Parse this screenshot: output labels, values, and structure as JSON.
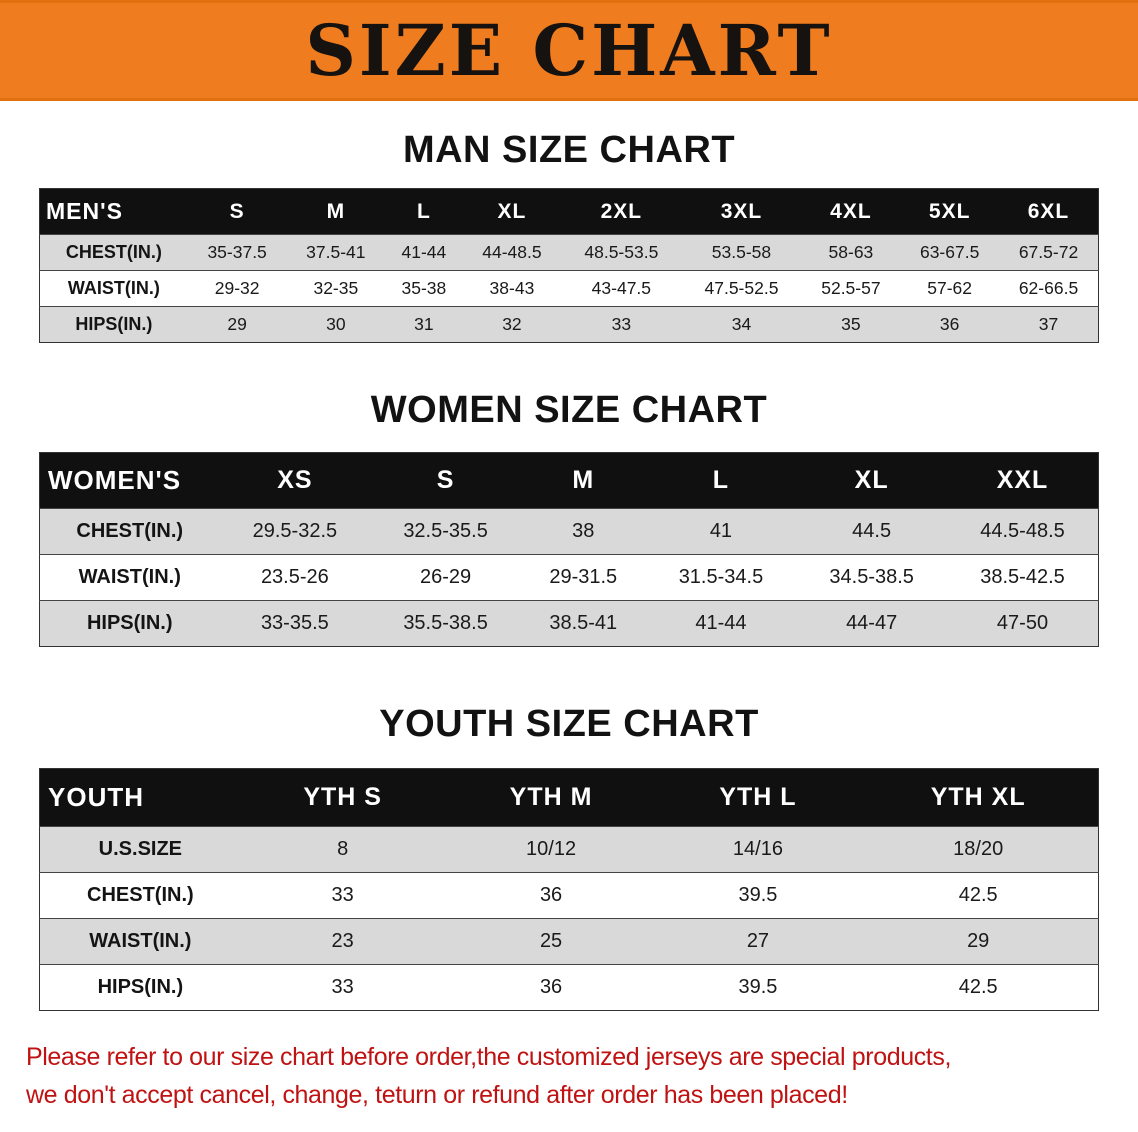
{
  "banner": {
    "title": "SIZE CHART",
    "bg_color": "#EF7D1F",
    "text_color": "#161210"
  },
  "sections": [
    {
      "id": "men",
      "heading": "MAN SIZE CHART",
      "table": {
        "header": [
          "MEN'S",
          "S",
          "M",
          "L",
          "XL",
          "2XL",
          "3XL",
          "4XL",
          "5XL",
          "6XL"
        ],
        "rows": [
          [
            "CHEST(IN.)",
            "35-37.5",
            "37.5-41",
            "41-44",
            "44-48.5",
            "48.5-53.5",
            "53.5-58",
            "58-63",
            "63-67.5",
            "67.5-72"
          ],
          [
            "WAIST(IN.)",
            "29-32",
            "32-35",
            "35-38",
            "38-43",
            "43-47.5",
            "47.5-52.5",
            "52.5-57",
            "57-62",
            "62-66.5"
          ],
          [
            "HIPS(IN.)",
            "29",
            "30",
            "31",
            "32",
            "33",
            "34",
            "35",
            "36",
            "37"
          ]
        ]
      }
    },
    {
      "id": "women",
      "heading": "WOMEN SIZE CHART",
      "table": {
        "header": [
          "WOMEN'S",
          "XS",
          "S",
          "M",
          "L",
          "XL",
          "XXL"
        ],
        "rows": [
          [
            "CHEST(IN.)",
            "29.5-32.5",
            "32.5-35.5",
            "38",
            "41",
            "44.5",
            "44.5-48.5"
          ],
          [
            "WAIST(IN.)",
            "23.5-26",
            "26-29",
            "29-31.5",
            "31.5-34.5",
            "34.5-38.5",
            "38.5-42.5"
          ],
          [
            "HIPS(IN.)",
            "33-35.5",
            "35.5-38.5",
            "38.5-41",
            "41-44",
            "44-47",
            "47-50"
          ]
        ]
      }
    },
    {
      "id": "youth",
      "heading": "YOUTH SIZE CHART",
      "table": {
        "header": [
          "YOUTH",
          "YTH S",
          "YTH M",
          "YTH L",
          "YTH XL"
        ],
        "rows": [
          [
            "U.S.SIZE",
            "8",
            "10/12",
            "14/16",
            "18/20"
          ],
          [
            "CHEST(IN.)",
            "33",
            "36",
            "39.5",
            "42.5"
          ],
          [
            "WAIST(IN.)",
            "23",
            "25",
            "27",
            "29"
          ],
          [
            "HIPS(IN.)",
            "33",
            "36",
            "39.5",
            "42.5"
          ]
        ]
      }
    }
  ],
  "disclaimer": {
    "lines": [
      "Please refer to our size chart before order,the customized jerseys are special products,",
      "we don't accept cancel, change, teturn or refund after order has been placed!"
    ],
    "color": "#c01212"
  },
  "colors": {
    "banner_bg": "#EF7D1F",
    "table_header_bg": "#101010",
    "table_header_text": "#ffffff",
    "row_shaded": "#d9d9d9",
    "row_plain": "#ffffff",
    "disclaimer_red": "#c01212"
  }
}
